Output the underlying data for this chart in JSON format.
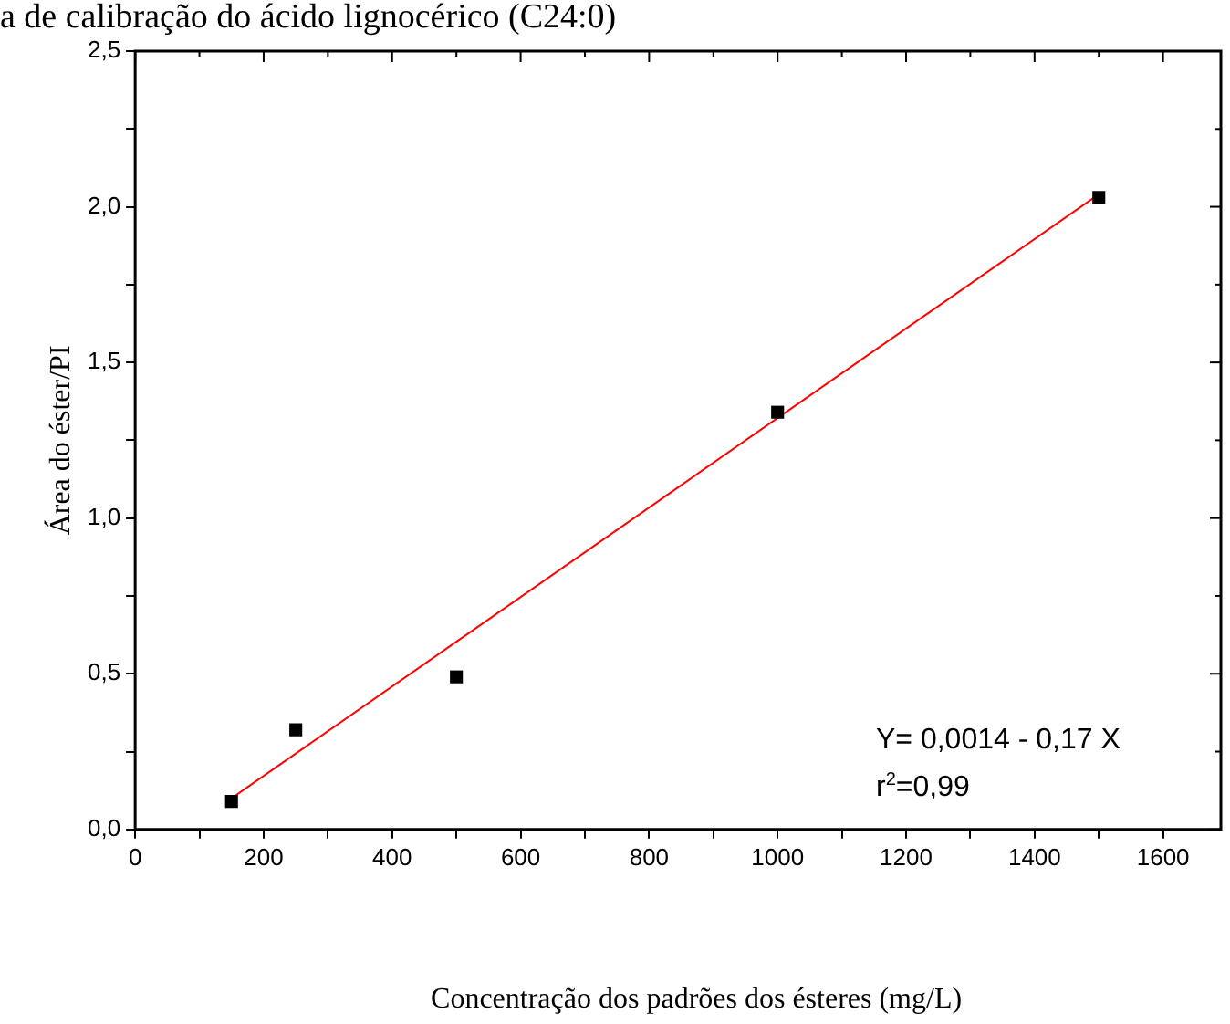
{
  "chart_data": {
    "type": "scatter",
    "title": "a de calibração do ácido lignocérico (C24:0)",
    "xlabel": "Concentração dos padrões dos ésteres (mg/L)",
    "ylabel": "Área do éster/PI",
    "series": [
      {
        "color": "#000000",
        "marker": "square",
        "x": [
          150,
          250,
          500,
          1000,
          1500
        ],
        "values": [
          0.09,
          0.32,
          0.49,
          1.34,
          2.03
        ]
      },
      {
        "type": "line",
        "color": "#ff0000",
        "marker": "none",
        "line_style": "solid",
        "x": [
          150,
          1500
        ],
        "values": [
          0.1,
          2.04
        ]
      }
    ],
    "xlim": [
      0,
      1690
    ],
    "xticks": [
      0,
      {
        "value": 100,
        "label": null
      },
      200,
      {
        "value": 300,
        "label": null
      },
      400,
      {
        "value": 500,
        "label": null
      },
      600,
      {
        "value": 700,
        "label": null
      },
      800,
      {
        "value": 900,
        "label": null
      },
      1000,
      {
        "value": 1100,
        "label": null
      },
      1200,
      {
        "value": 1300,
        "label": null
      },
      1400,
      {
        "value": 1500,
        "label": null
      },
      1600
    ],
    "ylim": [
      0,
      2.5
    ],
    "yticks": [
      {
        "value": 0,
        "label": "0,0"
      },
      {
        "value": 0.25,
        "label": null
      },
      {
        "value": 0.5,
        "label": "0,5"
      },
      {
        "value": 0.75,
        "label": null
      },
      {
        "value": 1,
        "label": "1,0"
      },
      {
        "value": 1.25,
        "label": null
      },
      {
        "value": 1.5,
        "label": "1,5"
      },
      {
        "value": 1.75,
        "label": null
      },
      {
        "value": 2,
        "label": "2,0"
      },
      {
        "value": 2.25,
        "label": null
      },
      {
        "value": 2.5,
        "label": "2,5"
      }
    ],
    "grid": false,
    "legend": false,
    "annotations": [
      "Y= 0,0014 - 0,17 X",
      "r$^{2}$=0,99"
    ]
  }
}
